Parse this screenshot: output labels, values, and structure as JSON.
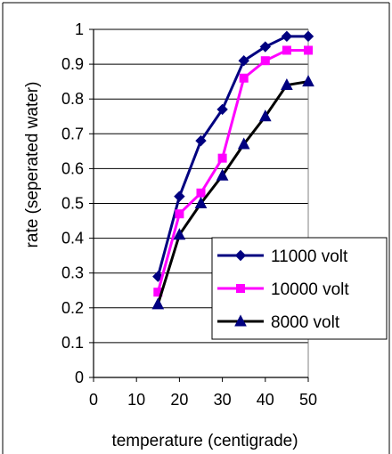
{
  "chart_data": {
    "type": "line",
    "title": "",
    "xlabel": "temperature (centigrade)",
    "ylabel": "rate (seperated water)",
    "xlim": [
      0,
      50
    ],
    "ylim": [
      0,
      1
    ],
    "x_ticks": [
      0,
      10,
      20,
      30,
      40,
      50
    ],
    "x_tick_labels": [
      "0",
      "10",
      "20",
      "30",
      "40",
      "50"
    ],
    "y_ticks": [
      0,
      0.1,
      0.2,
      0.3,
      0.4,
      0.5,
      0.6,
      0.7,
      0.8,
      0.9,
      1
    ],
    "y_tick_labels": [
      "0",
      "0.1",
      "0.2",
      "0.3",
      "0.4",
      "0.5",
      "0.6",
      "0.7",
      "0.8",
      "0.9",
      "1"
    ],
    "grid": "horizontal",
    "legend_position": "right",
    "x": [
      15,
      20,
      25,
      30,
      35,
      40,
      45,
      50
    ],
    "series": [
      {
        "name": "11000  volt",
        "color": "#000080",
        "marker": "diamond",
        "values": [
          0.29,
          0.52,
          0.68,
          0.77,
          0.91,
          0.95,
          0.98,
          0.98
        ]
      },
      {
        "name": "10000 volt",
        "color": "#FF00FF",
        "marker": "square",
        "values": [
          0.245,
          0.47,
          0.53,
          0.63,
          0.86,
          0.91,
          0.94,
          0.94
        ]
      },
      {
        "name": "8000 volt",
        "color": "#000000",
        "marker": "triangle",
        "marker_color": "#000080",
        "values": [
          0.21,
          0.41,
          0.5,
          0.58,
          0.67,
          0.75,
          0.84,
          0.85
        ]
      }
    ]
  }
}
